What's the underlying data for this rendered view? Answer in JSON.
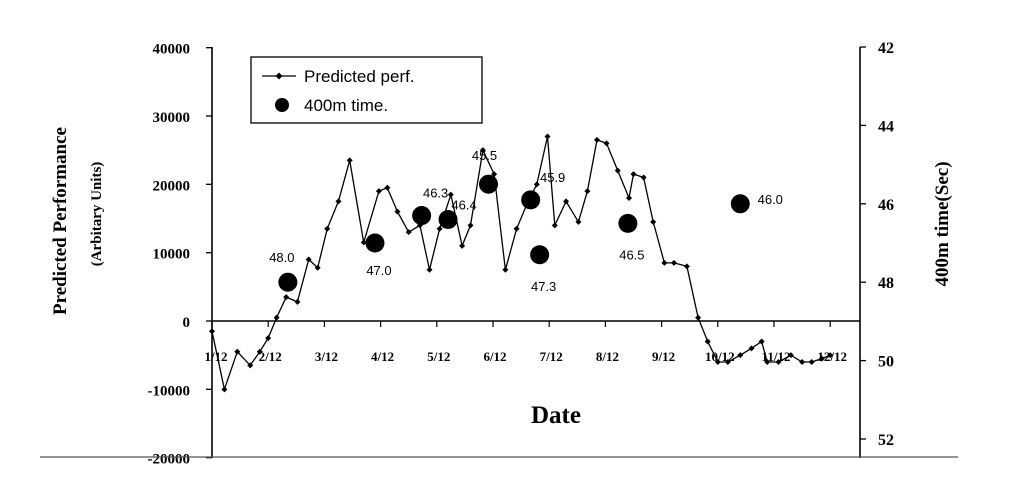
{
  "chart_data": {
    "type": "line",
    "xlabel": "Date",
    "ylabel": "Predicted Performance",
    "ylabel_sub": "(Arbitary Units)",
    "y2label": "400m time(Sec)",
    "x_ticks": [
      "1/12",
      "2/12",
      "3/12",
      "4/12",
      "5/12",
      "6/12",
      "7/12",
      "8/12",
      "9/12",
      "10/12",
      "11/12",
      "12/12"
    ],
    "y_ticks": [
      "40000",
      "30000",
      "20000",
      "10000",
      "0",
      "-10000",
      "-20000"
    ],
    "y2_ticks": [
      "42",
      "44",
      "46",
      "48",
      "50",
      "52"
    ],
    "ylim": [
      -20000,
      40000
    ],
    "y2lim": [
      52,
      42
    ],
    "grid": false,
    "legend": {
      "position": "top-left",
      "items": [
        "Predicted perf.",
        "400m time."
      ]
    },
    "series": [
      {
        "name": "Predicted perf.",
        "axis": "left",
        "x": [
          0.0,
          0.22,
          0.45,
          0.68,
          0.85,
          1.0,
          1.15,
          1.32,
          1.52,
          1.72,
          1.88,
          2.05,
          2.25,
          2.45,
          2.7,
          2.97,
          3.12,
          3.3,
          3.5,
          3.7,
          3.87,
          4.05,
          4.25,
          4.45,
          4.6,
          4.82,
          5.02,
          5.22,
          5.42,
          5.6,
          5.78,
          5.97,
          6.1,
          6.3,
          6.52,
          6.68,
          6.85,
          7.02,
          7.22,
          7.42,
          7.5,
          7.68,
          7.85,
          8.05,
          8.22,
          8.45,
          8.65,
          8.82,
          9.0,
          9.18,
          9.4,
          9.6,
          9.78,
          9.88,
          10.08,
          10.3,
          10.5,
          10.67,
          10.85,
          11.0
        ],
        "values": [
          -1500,
          -10000,
          -4500,
          -6500,
          -4500,
          -2500,
          500,
          3500,
          2800,
          9000,
          7800,
          13500,
          17500,
          23500,
          11500,
          19000,
          19500,
          16000,
          13000,
          14000,
          7500,
          13500,
          18500,
          11000,
          14000,
          25000,
          21500,
          7500,
          13500,
          17000,
          20000,
          27000,
          14000,
          17500,
          14500,
          19000,
          26500,
          26000,
          22000,
          18000,
          21500,
          21000,
          14500,
          8500,
          8500,
          8000,
          500,
          -3000,
          -6000,
          -6000,
          -5000,
          -4000,
          -3000,
          -6000,
          -6000,
          -5000,
          -6000,
          -6000,
          -5500,
          -5000
        ],
        "note": "line with small diamond markers"
      },
      {
        "name": "400m time.",
        "axis": "right",
        "x": [
          1.35,
          2.9,
          3.73,
          4.2,
          4.92,
          5.67,
          5.83,
          7.4,
          9.4
        ],
        "values": [
          48.0,
          47.0,
          46.3,
          46.4,
          45.5,
          45.9,
          47.3,
          46.5,
          46.0
        ]
      }
    ],
    "annotations": [
      "48.0",
      "47.0",
      "46.3",
      "46.4",
      "45.5",
      "45.9",
      "47.3",
      "46.5",
      "46.0"
    ]
  }
}
